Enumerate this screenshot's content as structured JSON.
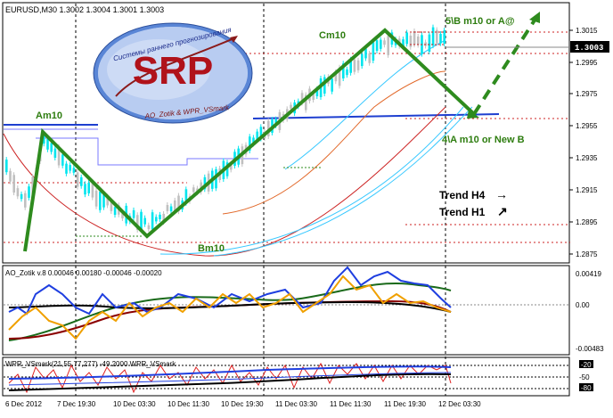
{
  "chart": {
    "header": "EURUSD,M30  1.3002 1.3004 1.3001 1.3003",
    "current_price": "1.3003",
    "price_axis_labels": [
      "1.3015",
      "1.2995",
      "1.2975",
      "1.2955",
      "1.2935",
      "1.2915",
      "1.2895",
      "1.2875"
    ],
    "time_axis_labels": [
      "6 Dec 2012",
      "7 Dec 19:30",
      "10 Dec 03:30",
      "10 Dec 11:30",
      "10 Dec 19:30",
      "11 Dec 03:30",
      "11 Dec 11:30",
      "11 Dec 19:30",
      "12 Dec 03:30"
    ],
    "annotations": {
      "am10": "Am10",
      "bm10": "Bm10",
      "cm10": "Cm10",
      "target_b": "5\\B m10 or  A@",
      "target_a": "4\\A m10 or New B",
      "trend_h4": "Trend H4",
      "trend_h1": "Trend H1",
      "arrow_h4": "→",
      "arrow_h1": "↗"
    },
    "logo": {
      "brand": "SRP",
      "arc_top": "Системы раннего прогнозирования",
      "arc_bottom": "AO_Zotik & WPR_VSmark"
    }
  },
  "ao_panel": {
    "header": "AO_Zotik v.8 0.00046 0.00180 -0.00046 -0.00020",
    "axis_labels": [
      "0.00419",
      "0.00",
      "-0.00483"
    ]
  },
  "wpr_panel": {
    "header": "WPR_VSmark(21,55,77,277) -49.2000  WPR_VSmark",
    "axis_labels": [
      "-20",
      "-50",
      "-80"
    ]
  },
  "colors": {
    "background": "#ffffff",
    "bull_candle": "#00e5ee",
    "bear_candle": "#c0c0c0",
    "wave_line": "#2e8b1e",
    "annotation_text": "#2e7d10",
    "price_box": "#000000"
  }
}
